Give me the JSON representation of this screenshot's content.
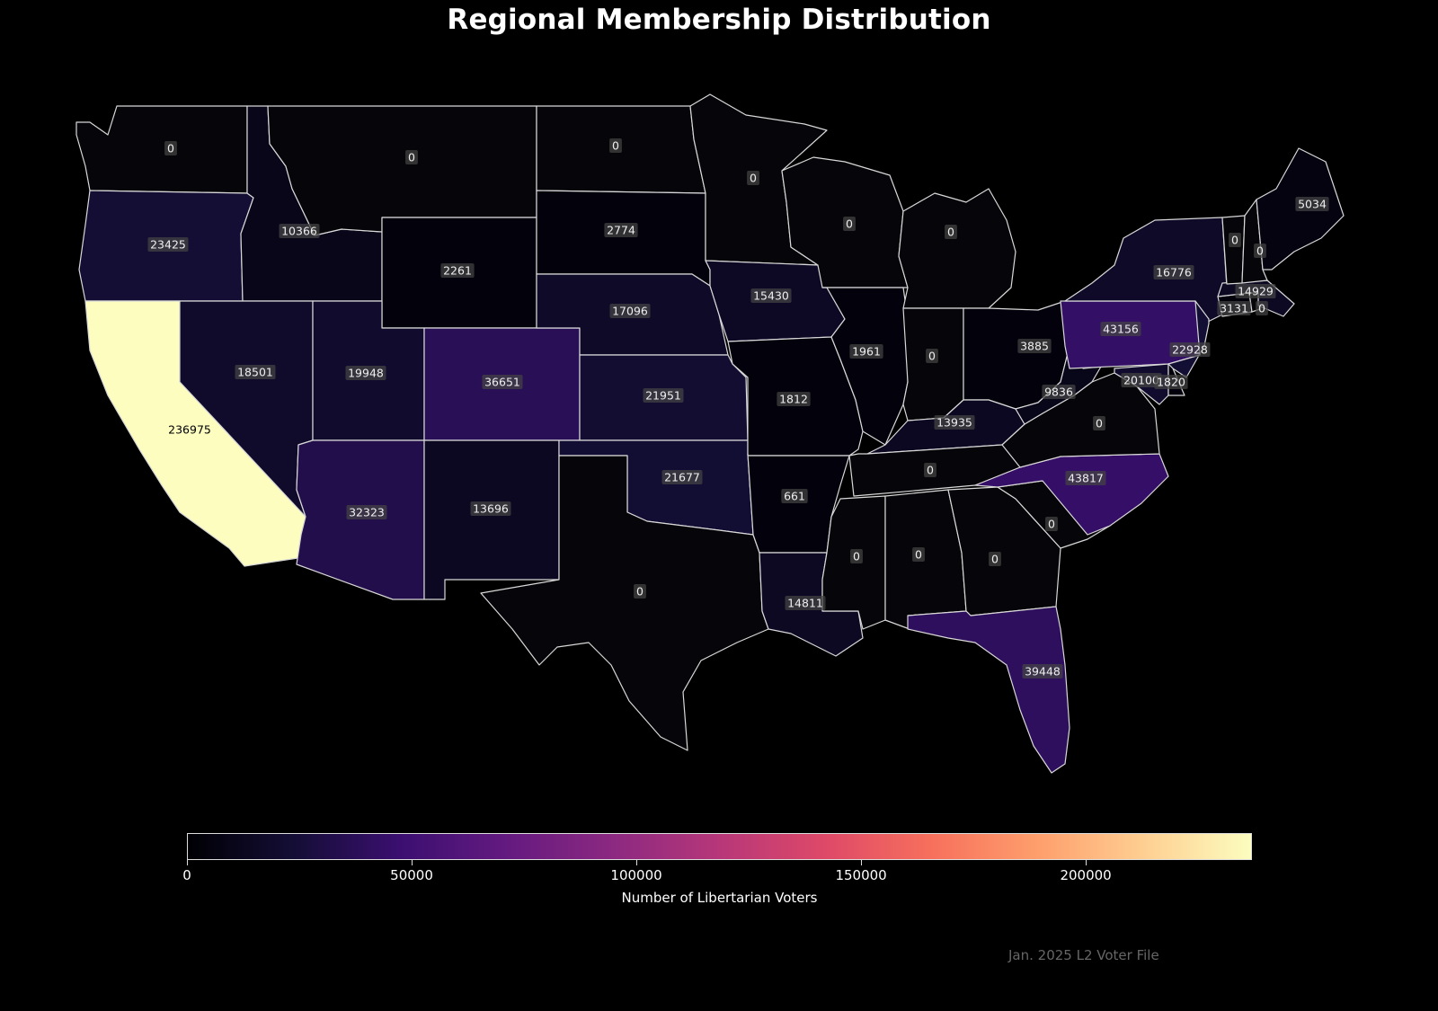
{
  "title": "Regional Membership Distribution",
  "source_note": "Jan. 2025 L2 Voter File",
  "colorbar": {
    "label": "Number of Libertarian Voters",
    "min": 0,
    "max": 236975,
    "colormap": "magma",
    "ticks": [
      "0",
      "50000",
      "100000",
      "150000",
      "200000"
    ]
  },
  "chart_data": {
    "type": "choropleth",
    "metric": "Number of Libertarian Voters",
    "regions": [
      {
        "state": "WA",
        "value": 0
      },
      {
        "state": "OR",
        "value": 23425
      },
      {
        "state": "CA",
        "value": 236975
      },
      {
        "state": "ID",
        "value": 10366
      },
      {
        "state": "NV",
        "value": 18501
      },
      {
        "state": "MT",
        "value": 0
      },
      {
        "state": "WY",
        "value": 2261
      },
      {
        "state": "UT",
        "value": 19948
      },
      {
        "state": "AZ",
        "value": 32323
      },
      {
        "state": "CO",
        "value": 36651
      },
      {
        "state": "NM",
        "value": 13696
      },
      {
        "state": "ND",
        "value": 0
      },
      {
        "state": "SD",
        "value": 2774
      },
      {
        "state": "NE",
        "value": 17096
      },
      {
        "state": "KS",
        "value": 21951
      },
      {
        "state": "OK",
        "value": 21677
      },
      {
        "state": "TX",
        "value": 0
      },
      {
        "state": "MN",
        "value": 0
      },
      {
        "state": "IA",
        "value": 15430
      },
      {
        "state": "MO",
        "value": 1812
      },
      {
        "state": "AR",
        "value": 661
      },
      {
        "state": "LA",
        "value": 14811
      },
      {
        "state": "WI",
        "value": 0
      },
      {
        "state": "IL",
        "value": 1961
      },
      {
        "state": "MI",
        "value": 0
      },
      {
        "state": "IN",
        "value": 0
      },
      {
        "state": "OH",
        "value": 3885
      },
      {
        "state": "KY",
        "value": 13935
      },
      {
        "state": "TN",
        "value": 0
      },
      {
        "state": "MS",
        "value": 0
      },
      {
        "state": "AL",
        "value": 0
      },
      {
        "state": "GA",
        "value": 0
      },
      {
        "state": "FL",
        "value": 39448
      },
      {
        "state": "SC",
        "value": 0
      },
      {
        "state": "NC",
        "value": 43817
      },
      {
        "state": "VA",
        "value": 0
      },
      {
        "state": "WV",
        "value": 9836
      },
      {
        "state": "PA",
        "value": 43156
      },
      {
        "state": "NY",
        "value": 16776
      },
      {
        "state": "NJ",
        "value": 22928
      },
      {
        "state": "MD",
        "value": 20100
      },
      {
        "state": "DE",
        "value": 1820
      },
      {
        "state": "CT",
        "value": 3131
      },
      {
        "state": "RI",
        "value": 0
      },
      {
        "state": "MA",
        "value": 14929
      },
      {
        "state": "VT",
        "value": 0
      },
      {
        "state": "NH",
        "value": 0
      },
      {
        "state": "ME",
        "value": 5034
      }
    ]
  }
}
